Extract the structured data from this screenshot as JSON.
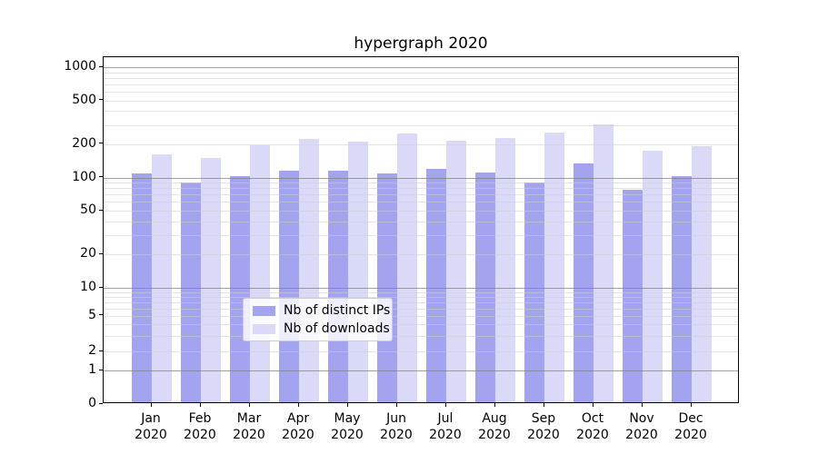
{
  "title": "hypergraph 2020",
  "colors": {
    "distinct_ips_bar": "#a3a3f0",
    "downloads_bar": "#dadaf8",
    "major_gridline": "#828282",
    "minor_gridline": "#cdcdcd",
    "spine": "#000000",
    "background": "#ffffff"
  },
  "legend": {
    "items": [
      {
        "label": "Nb of distinct IPs",
        "color": "#a3a3f0"
      },
      {
        "label": "Nb of downloads",
        "color": "#dadaf8"
      }
    ]
  },
  "chart_data": {
    "type": "bar",
    "title": "hypergraph 2020",
    "categories": [
      "Jan",
      "Feb",
      "Mar",
      "Apr",
      "May",
      "Jun",
      "Jul",
      "Aug",
      "Sep",
      "Oct",
      "Nov",
      "Dec"
    ],
    "category_year": "2020",
    "series": [
      {
        "name": "Nb of distinct IPs",
        "color": "#a3a3f0",
        "values": [
          105,
          87,
          100,
          112,
          110,
          104,
          116,
          106,
          87,
          130,
          75,
          100
        ]
      },
      {
        "name": "Nb of downloads",
        "color": "#dadaf8",
        "values": [
          157,
          146,
          190,
          216,
          205,
          240,
          208,
          219,
          246,
          290,
          167,
          186
        ]
      }
    ],
    "xlabel": "",
    "ylabel": "",
    "yscale": "symlog-like",
    "y_tick_labels": [
      "0",
      "1",
      "2",
      "5",
      "10",
      "20",
      "50",
      "100",
      "200",
      "500",
      "1000"
    ],
    "ylim": [
      0,
      1300
    ],
    "grid": "on",
    "legend_position": "lower center"
  }
}
